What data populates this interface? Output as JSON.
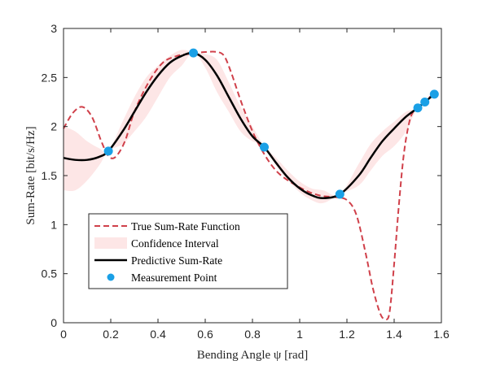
{
  "chart_data": {
    "type": "line",
    "xlabel": "Bending Angle ψ [rad]",
    "ylabel": "Sum-Rate [bit/s/Hz]",
    "xlim": [
      0,
      1.6
    ],
    "ylim": [
      0,
      3
    ],
    "x_ticks": [
      "0",
      "0.2",
      "0.4",
      "0.6",
      "0.8",
      "1",
      "1.2",
      "1.4",
      "1.6"
    ],
    "y_ticks": [
      "0",
      "0.5",
      "1",
      "1.5",
      "2",
      "2.5",
      "3"
    ],
    "legend_position": "bottom-left",
    "colors": {
      "true": "#d0404a",
      "confidence": "#fde6e6",
      "predictive": "#000000",
      "measurement": "#1aa0e6"
    },
    "series": [
      {
        "name": "True Sum-Rate Function",
        "style": "dashed",
        "x": [
          0,
          0.04,
          0.08,
          0.12,
          0.16,
          0.19,
          0.22,
          0.26,
          0.3,
          0.36,
          0.42,
          0.48,
          0.53,
          0.56,
          0.6,
          0.65,
          0.68,
          0.71,
          0.76,
          0.82,
          0.9,
          1.0,
          1.08,
          1.15,
          1.2,
          1.24,
          1.28,
          1.31,
          1.34,
          1.36,
          1.38,
          1.4,
          1.42,
          1.44,
          1.46,
          1.48,
          1.52,
          1.57
        ],
        "y": [
          1.98,
          2.14,
          2.2,
          2.1,
          1.85,
          1.7,
          1.69,
          1.85,
          2.15,
          2.45,
          2.65,
          2.72,
          2.74,
          2.75,
          2.76,
          2.76,
          2.72,
          2.55,
          2.2,
          1.85,
          1.55,
          1.38,
          1.3,
          1.28,
          1.25,
          1.1,
          0.7,
          0.35,
          0.1,
          0.04,
          0.1,
          0.6,
          1.2,
          1.7,
          2.0,
          2.15,
          2.25,
          2.33
        ]
      },
      {
        "name": "Confidence Interval",
        "style": "band",
        "x": [
          0,
          0.05,
          0.1,
          0.15,
          0.19,
          0.25,
          0.3,
          0.35,
          0.4,
          0.45,
          0.5,
          0.55,
          0.6,
          0.65,
          0.7,
          0.75,
          0.8,
          0.85,
          0.9,
          0.95,
          1.0,
          1.05,
          1.1,
          1.17,
          1.25,
          1.3,
          1.35,
          1.4,
          1.45,
          1.5,
          1.57
        ],
        "lower": [
          1.35,
          1.35,
          1.45,
          1.6,
          1.75,
          1.82,
          1.95,
          2.1,
          2.3,
          2.5,
          2.62,
          2.75,
          2.6,
          2.35,
          2.15,
          1.95,
          1.85,
          1.8,
          1.6,
          1.45,
          1.33,
          1.25,
          1.22,
          1.31,
          1.4,
          1.55,
          1.7,
          1.8,
          1.95,
          2.19,
          2.33
        ],
        "upper": [
          2.0,
          1.95,
          1.85,
          1.78,
          1.75,
          2.05,
          2.3,
          2.5,
          2.62,
          2.72,
          2.78,
          2.76,
          2.74,
          2.68,
          2.45,
          2.2,
          2.0,
          1.8,
          1.68,
          1.55,
          1.44,
          1.37,
          1.35,
          1.31,
          1.62,
          1.82,
          1.95,
          2.05,
          2.15,
          2.19,
          2.33
        ]
      },
      {
        "name": "Predictive Sum-Rate",
        "style": "solid",
        "x": [
          0,
          0.05,
          0.1,
          0.15,
          0.19,
          0.25,
          0.3,
          0.35,
          0.4,
          0.45,
          0.5,
          0.55,
          0.6,
          0.65,
          0.7,
          0.75,
          0.8,
          0.85,
          0.9,
          0.95,
          1.0,
          1.05,
          1.1,
          1.17,
          1.25,
          1.3,
          1.35,
          1.4,
          1.45,
          1.5,
          1.53,
          1.57
        ],
        "y": [
          1.68,
          1.66,
          1.66,
          1.69,
          1.75,
          1.95,
          2.15,
          2.35,
          2.52,
          2.65,
          2.72,
          2.75,
          2.68,
          2.52,
          2.3,
          2.08,
          1.9,
          1.79,
          1.63,
          1.48,
          1.37,
          1.3,
          1.27,
          1.31,
          1.5,
          1.68,
          1.85,
          1.98,
          2.1,
          2.19,
          2.25,
          2.33
        ]
      },
      {
        "name": "Measurement Point",
        "style": "markers",
        "x": [
          0.19,
          0.55,
          0.85,
          1.17,
          1.5,
          1.53,
          1.57
        ],
        "y": [
          1.75,
          2.75,
          1.79,
          1.31,
          2.19,
          2.25,
          2.33
        ]
      }
    ]
  }
}
